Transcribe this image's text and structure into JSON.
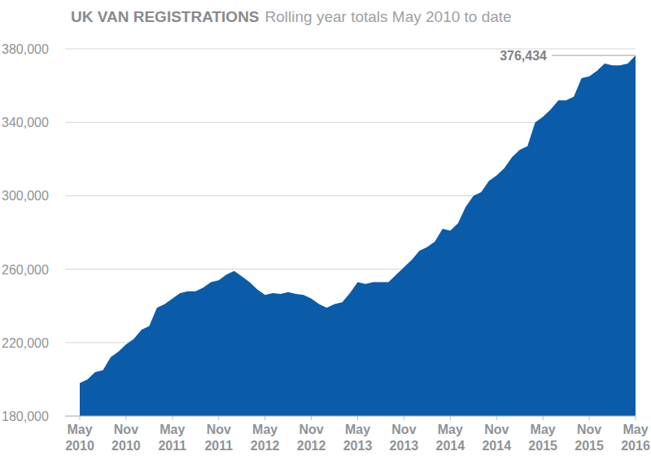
{
  "chart_data": {
    "type": "area",
    "title": "UK VAN REGISTRATIONS",
    "subtitle": "Rolling year totals May 2010 to date",
    "color": "#0b5ca8",
    "grid": true,
    "annotation": "376,434",
    "categories": [
      "May 2010",
      null,
      null,
      null,
      null,
      null,
      "Nov 2010",
      null,
      null,
      null,
      null,
      null,
      "May 2011",
      null,
      null,
      null,
      null,
      null,
      "Nov 2011",
      null,
      null,
      null,
      null,
      null,
      "May 2012",
      null,
      null,
      null,
      null,
      null,
      "Nov 2012",
      null,
      null,
      null,
      null,
      null,
      "May 2013",
      null,
      null,
      null,
      null,
      null,
      "Nov 2013",
      null,
      null,
      null,
      null,
      null,
      "May 2014",
      null,
      null,
      null,
      null,
      null,
      "Nov 2014",
      null,
      null,
      null,
      null,
      null,
      "May 2015",
      null,
      null,
      null,
      null,
      null,
      "Nov 2015",
      null,
      null,
      null,
      null,
      null,
      "May 2016"
    ],
    "values": [
      198000,
      200000,
      204000,
      205000,
      212000,
      215000,
      219000,
      222000,
      227000,
      229000,
      239000,
      241000,
      244000,
      247000,
      248000,
      248000,
      250000,
      253000,
      254000,
      257000,
      259000,
      256000,
      253000,
      249000,
      246000,
      247000,
      246500,
      247500,
      246500,
      246000,
      244000,
      241000,
      239000,
      241000,
      242000,
      247000,
      253000,
      252000,
      253000,
      253000,
      253000,
      257000,
      261000,
      265000,
      270000,
      272000,
      275000,
      282000,
      281000,
      285000,
      294000,
      300000,
      302000,
      308000,
      311000,
      315000,
      321000,
      325000,
      327000,
      340000,
      343000,
      347000,
      352000,
      352000,
      354000,
      364000,
      365000,
      368000,
      372000,
      371000,
      371000,
      372000,
      376434
    ],
    "ylim": [
      180000,
      380000
    ],
    "yticks": [
      {
        "value": 180000,
        "label": "180,000"
      },
      {
        "value": 220000,
        "label": "220,000"
      },
      {
        "value": 260000,
        "label": "260,000"
      },
      {
        "value": 300000,
        "label": "300,000"
      },
      {
        "value": 340000,
        "label": "340,000"
      },
      {
        "value": 380000,
        "label": "380,000"
      }
    ]
  }
}
